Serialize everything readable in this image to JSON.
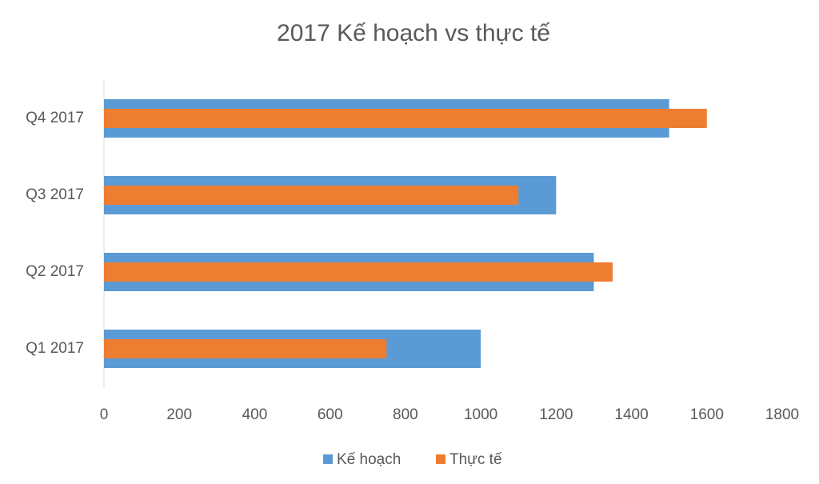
{
  "chart_data": {
    "type": "bar",
    "orientation": "horizontal",
    "title": "2017 Kế hoạch vs thực tế",
    "categories": [
      "Q1 2017",
      "Q2 2017",
      "Q3 2017",
      "Q4 2017"
    ],
    "series": [
      {
        "name": "Kế hoạch",
        "color": "#5b9bd5",
        "values": [
          1000,
          1300,
          1200,
          1500
        ]
      },
      {
        "name": "Thực tế",
        "color": "#ed7d31",
        "values": [
          750,
          1350,
          1100,
          1600
        ]
      }
    ],
    "xlim": [
      0,
      1800
    ],
    "xticks": [
      0,
      200,
      400,
      600,
      800,
      1000,
      1200,
      1400,
      1600,
      1800
    ],
    "grid": false,
    "legend": "bottom"
  }
}
